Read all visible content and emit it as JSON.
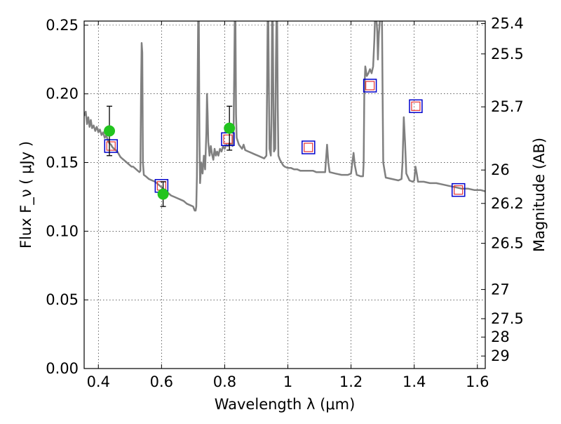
{
  "chart_data": {
    "type": "line",
    "xlabel": "Wavelength  λ (μm)",
    "ylabel": "Flux  F_ν  ( μJy )",
    "y2label": "Magnitude (AB)",
    "xlim": [
      0.355,
      1.625
    ],
    "ylim": [
      0.0,
      0.253
    ],
    "grid": true,
    "x_ticks": [
      0.4,
      0.6,
      0.8,
      1.0,
      1.2,
      1.4,
      1.6
    ],
    "x_tick_labels": [
      "0.4",
      "0.6",
      "0.8",
      "1",
      "1.2",
      "1.4",
      "1.6"
    ],
    "y_ticks": [
      0.0,
      0.05,
      0.1,
      0.15,
      0.2,
      0.25
    ],
    "y_tick_labels": [
      "0.00",
      "0.05",
      "0.10",
      "0.15",
      "0.20",
      "0.25"
    ],
    "y2_ticks": [
      25.4,
      25.5,
      25.7,
      26,
      26.2,
      26.5,
      27,
      27.5,
      28,
      29
    ],
    "y2_tick_labels": [
      "25.4",
      "25.5",
      "25.7",
      "26",
      "26.2",
      "26.5",
      "27",
      "27.5",
      "28",
      "29"
    ],
    "colors": {
      "model": "#808080",
      "observed_points": "#22c41f",
      "model_band_outer": "#0000cc",
      "model_band_inner": "#e63232",
      "errorbar": "#000000"
    },
    "series": [
      {
        "kind": "line",
        "points": [
          [
            0.355,
            0.184
          ],
          [
            0.36,
            0.187
          ],
          [
            0.364,
            0.178
          ],
          [
            0.368,
            0.183
          ],
          [
            0.372,
            0.176
          ],
          [
            0.376,
            0.181
          ],
          [
            0.38,
            0.175
          ],
          [
            0.385,
            0.177
          ],
          [
            0.39,
            0.173
          ],
          [
            0.395,
            0.176
          ],
          [
            0.4,
            0.172
          ],
          [
            0.405,
            0.174
          ],
          [
            0.41,
            0.17
          ],
          [
            0.415,
            0.172
          ],
          [
            0.42,
            0.168
          ],
          [
            0.425,
            0.17
          ],
          [
            0.43,
            0.166
          ],
          [
            0.435,
            0.164
          ],
          [
            0.44,
            0.163
          ],
          [
            0.445,
            0.161
          ],
          [
            0.45,
            0.16
          ],
          [
            0.455,
            0.159
          ],
          [
            0.46,
            0.158
          ],
          [
            0.465,
            0.156
          ],
          [
            0.47,
            0.154
          ],
          [
            0.475,
            0.153
          ],
          [
            0.48,
            0.152
          ],
          [
            0.485,
            0.151
          ],
          [
            0.49,
            0.15
          ],
          [
            0.495,
            0.149
          ],
          [
            0.5,
            0.148
          ],
          [
            0.505,
            0.147
          ],
          [
            0.51,
            0.147
          ],
          [
            0.515,
            0.146
          ],
          [
            0.52,
            0.145
          ],
          [
            0.525,
            0.144
          ],
          [
            0.53,
            0.143
          ],
          [
            0.533,
            0.144
          ],
          [
            0.535,
            0.2
          ],
          [
            0.537,
            0.237
          ],
          [
            0.539,
            0.23
          ],
          [
            0.541,
            0.15
          ],
          [
            0.544,
            0.141
          ],
          [
            0.55,
            0.14
          ],
          [
            0.56,
            0.138
          ],
          [
            0.57,
            0.137
          ],
          [
            0.58,
            0.136
          ],
          [
            0.59,
            0.134
          ],
          [
            0.6,
            0.132
          ],
          [
            0.61,
            0.13
          ],
          [
            0.62,
            0.128
          ],
          [
            0.63,
            0.126
          ],
          [
            0.64,
            0.125
          ],
          [
            0.65,
            0.124
          ],
          [
            0.66,
            0.123
          ],
          [
            0.67,
            0.122
          ],
          [
            0.68,
            0.12
          ],
          [
            0.69,
            0.119
          ],
          [
            0.7,
            0.118
          ],
          [
            0.705,
            0.115
          ],
          [
            0.708,
            0.115
          ],
          [
            0.71,
            0.118
          ],
          [
            0.712,
            0.14
          ],
          [
            0.714,
            0.2
          ],
          [
            0.716,
            0.256
          ],
          [
            0.718,
            0.256
          ],
          [
            0.72,
            0.17
          ],
          [
            0.722,
            0.135
          ],
          [
            0.726,
            0.15
          ],
          [
            0.73,
            0.142
          ],
          [
            0.734,
            0.155
          ],
          [
            0.738,
            0.145
          ],
          [
            0.742,
            0.172
          ],
          [
            0.744,
            0.2
          ],
          [
            0.746,
            0.185
          ],
          [
            0.748,
            0.165
          ],
          [
            0.752,
            0.155
          ],
          [
            0.756,
            0.162
          ],
          [
            0.76,
            0.156
          ],
          [
            0.764,
            0.152
          ],
          [
            0.768,
            0.16
          ],
          [
            0.772,
            0.155
          ],
          [
            0.776,
            0.158
          ],
          [
            0.78,
            0.155
          ],
          [
            0.785,
            0.16
          ],
          [
            0.79,
            0.158
          ],
          [
            0.795,
            0.162
          ],
          [
            0.8,
            0.16
          ],
          [
            0.805,
            0.163
          ],
          [
            0.81,
            0.162
          ],
          [
            0.815,
            0.164
          ],
          [
            0.82,
            0.163
          ],
          [
            0.825,
            0.162
          ],
          [
            0.828,
            0.17
          ],
          [
            0.83,
            0.21
          ],
          [
            0.832,
            0.256
          ],
          [
            0.834,
            0.256
          ],
          [
            0.836,
            0.185
          ],
          [
            0.838,
            0.168
          ],
          [
            0.845,
            0.163
          ],
          [
            0.855,
            0.16
          ],
          [
            0.86,
            0.163
          ],
          [
            0.865,
            0.159
          ],
          [
            0.875,
            0.158
          ],
          [
            0.885,
            0.157
          ],
          [
            0.895,
            0.156
          ],
          [
            0.905,
            0.155
          ],
          [
            0.915,
            0.154
          ],
          [
            0.925,
            0.153
          ],
          [
            0.932,
            0.155
          ],
          [
            0.934,
            0.2
          ],
          [
            0.936,
            0.256
          ],
          [
            0.938,
            0.256
          ],
          [
            0.94,
            0.2
          ],
          [
            0.942,
            0.16
          ],
          [
            0.946,
            0.155
          ],
          [
            0.948,
            0.18
          ],
          [
            0.95,
            0.256
          ],
          [
            0.952,
            0.256
          ],
          [
            0.954,
            0.2
          ],
          [
            0.956,
            0.158
          ],
          [
            0.96,
            0.16
          ],
          [
            0.962,
            0.22
          ],
          [
            0.964,
            0.256
          ],
          [
            0.966,
            0.256
          ],
          [
            0.968,
            0.19
          ],
          [
            0.97,
            0.155
          ],
          [
            0.975,
            0.152
          ],
          [
            0.98,
            0.15
          ],
          [
            0.985,
            0.148
          ],
          [
            0.99,
            0.147
          ],
          [
            1.0,
            0.146
          ],
          [
            1.01,
            0.146
          ],
          [
            1.02,
            0.145
          ],
          [
            1.03,
            0.145
          ],
          [
            1.04,
            0.144
          ],
          [
            1.05,
            0.144
          ],
          [
            1.06,
            0.144
          ],
          [
            1.07,
            0.144
          ],
          [
            1.08,
            0.144
          ],
          [
            1.09,
            0.143
          ],
          [
            1.1,
            0.143
          ],
          [
            1.11,
            0.143
          ],
          [
            1.118,
            0.143
          ],
          [
            1.12,
            0.15
          ],
          [
            1.124,
            0.163
          ],
          [
            1.128,
            0.15
          ],
          [
            1.132,
            0.143
          ],
          [
            1.15,
            0.142
          ],
          [
            1.17,
            0.141
          ],
          [
            1.19,
            0.141
          ],
          [
            1.2,
            0.142
          ],
          [
            1.204,
            0.15
          ],
          [
            1.208,
            0.157
          ],
          [
            1.212,
            0.148
          ],
          [
            1.218,
            0.141
          ],
          [
            1.23,
            0.14
          ],
          [
            1.238,
            0.14
          ],
          [
            1.24,
            0.15
          ],
          [
            1.242,
            0.2
          ],
          [
            1.245,
            0.22
          ],
          [
            1.25,
            0.213
          ],
          [
            1.255,
            0.215
          ],
          [
            1.26,
            0.218
          ],
          [
            1.265,
            0.215
          ],
          [
            1.27,
            0.22
          ],
          [
            1.274,
            0.24
          ],
          [
            1.276,
            0.256
          ],
          [
            1.28,
            0.256
          ],
          [
            1.283,
            0.245
          ],
          [
            1.285,
            0.225
          ],
          [
            1.288,
            0.243
          ],
          [
            1.292,
            0.256
          ],
          [
            1.298,
            0.256
          ],
          [
            1.3,
            0.2
          ],
          [
            1.302,
            0.15
          ],
          [
            1.31,
            0.139
          ],
          [
            1.33,
            0.138
          ],
          [
            1.35,
            0.137
          ],
          [
            1.36,
            0.138
          ],
          [
            1.363,
            0.15
          ],
          [
            1.367,
            0.183
          ],
          [
            1.371,
            0.165
          ],
          [
            1.375,
            0.142
          ],
          [
            1.385,
            0.137
          ],
          [
            1.395,
            0.136
          ],
          [
            1.4,
            0.137
          ],
          [
            1.404,
            0.147
          ],
          [
            1.408,
            0.142
          ],
          [
            1.412,
            0.136
          ],
          [
            1.43,
            0.136
          ],
          [
            1.45,
            0.135
          ],
          [
            1.47,
            0.135
          ],
          [
            1.49,
            0.134
          ],
          [
            1.51,
            0.133
          ],
          [
            1.53,
            0.132
          ],
          [
            1.55,
            0.131
          ],
          [
            1.57,
            0.131
          ],
          [
            1.59,
            0.13
          ],
          [
            1.61,
            0.13
          ],
          [
            1.625,
            0.129
          ]
        ]
      },
      {
        "kind": "scatter",
        "x": [
          0.435,
          0.605,
          0.815
        ],
        "y": [
          0.173,
          0.127,
          0.175
        ],
        "yerr": [
          0.018,
          0.009,
          0.016
        ]
      },
      {
        "kind": "square-markers",
        "x": [
          0.44,
          0.6,
          0.81,
          1.065,
          1.26,
          1.405,
          1.54
        ],
        "y": [
          0.162,
          0.133,
          0.167,
          0.161,
          0.206,
          0.191,
          0.13
        ]
      }
    ]
  }
}
